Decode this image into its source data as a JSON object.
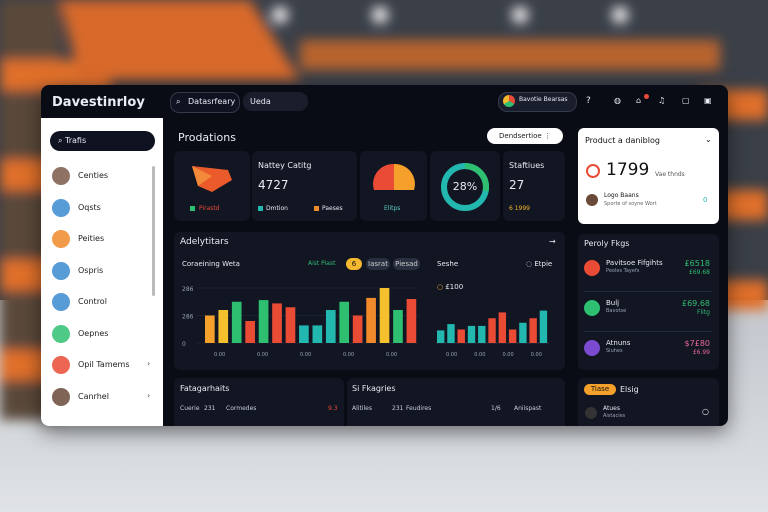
{
  "header": {
    "brand": "Davestinrloy",
    "search": "Datasrfeary",
    "filter": "Ueda",
    "user": "Bavotie Bearsas",
    "help": "?"
  },
  "sidebar": {
    "search": "Trafis",
    "items": [
      "Centies",
      "Oqsts",
      "Peities",
      "Ospris",
      "Control",
      "Oepnes",
      "Opil Tamems",
      "Canrhel"
    ]
  },
  "main": {
    "title": "Prodations",
    "action": "Dendsertioe",
    "kpis": [
      {
        "caption": "Pirastd"
      },
      {
        "label": "Nattey Catitg",
        "value": "4727",
        "legend": [
          "Dmtion",
          "Paeses"
        ]
      },
      {
        "caption": "Elitps"
      },
      {
        "label": "Staftiues",
        "value": "27",
        "caption": "6 1999"
      }
    ],
    "donut": {
      "value": 28,
      "label": "28%"
    }
  },
  "analytics": {
    "title": "Adelytitars",
    "ylim": [
      0,
      100
    ],
    "charts": [
      {
        "title": "Coraeining Weta",
        "tag": "Aist Piast",
        "filters": [
          "6",
          "Iasrat",
          "Piesad"
        ],
        "yticks": [
          "286",
          "286",
          "0"
        ],
        "x_labels": [
          "0.00",
          "0.00",
          "0.00",
          "0.00",
          "0.00"
        ],
        "values": [
          50,
          60,
          75,
          40,
          78,
          72,
          65,
          32,
          32,
          60,
          75,
          50,
          82,
          100,
          60,
          80
        ],
        "colors": [
          "#f5a02a",
          "#f5c02e",
          "#2fbf71",
          "#e94b35",
          "#2fbf71",
          "#e94b35",
          "#e94b35",
          "#22b8b0",
          "#22b8b0",
          "#22b8b0",
          "#2fbf71",
          "#e94b35",
          "#f08a2a",
          "#f5c02e",
          "#2fbf71",
          "#e94b35"
        ]
      },
      {
        "title": "Seshe",
        "filter": "Etpie",
        "note": "£100",
        "x_labels": [
          "0.00",
          "0.00",
          "0.00",
          "0.00"
        ],
        "values": [
          28,
          42,
          30,
          38,
          38,
          55,
          68,
          30,
          45,
          55,
          72
        ],
        "colors": [
          "#22b8b0",
          "#22b8b0",
          "#e94b35",
          "#22b8b0",
          "#22b8b0",
          "#e94b35",
          "#e94b35",
          "#e94b35",
          "#22b8b0",
          "#e94b35",
          "#22b8b0"
        ]
      }
    ]
  },
  "tables": [
    {
      "title": "Fatagarhaits",
      "row": [
        "Cuerie",
        "231",
        "Cormedes",
        "9.3"
      ]
    },
    {
      "title": "Si Fkagries",
      "row": [
        "Alitiles",
        "231",
        "Feudires",
        "1/6",
        "Aniispast"
      ]
    }
  ],
  "product": {
    "title": "Product a daniblog",
    "value": "1799",
    "unit": "Vae thnds",
    "owner": "Logo Baans",
    "note": "Sporte of soyne Wort",
    "badge": "0"
  },
  "list": {
    "title": "Peroly Fkgs",
    "items": [
      {
        "name": "Pavitsoe Fifgihts",
        "sub": "Peoles Tayefs",
        "value": "£6518",
        "value2": "£69.68"
      },
      {
        "name": "Bulj",
        "sub": "Bavotse",
        "value": "£69.68",
        "value2": "Flitg"
      },
      {
        "name": "Atnuns",
        "sub": "Sluhes",
        "value": "$7£80",
        "value2": "£6.99"
      }
    ]
  },
  "activity": {
    "tag": "Tiase",
    "title": "Elsig",
    "name": "Atues",
    "note": "Aistacies"
  }
}
